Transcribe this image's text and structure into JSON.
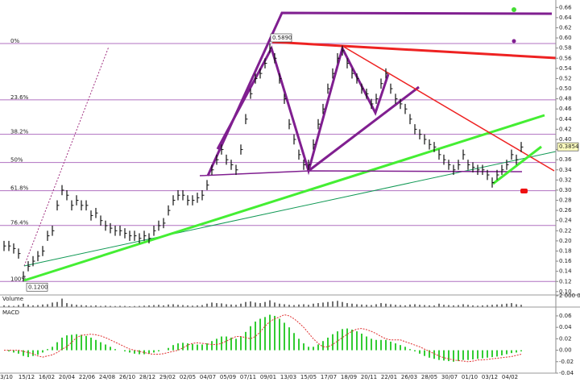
{
  "chart_data": [
    {
      "type": "hlc",
      "high": [
        0.2,
        0.2,
        0.195,
        0.185,
        0.14,
        0.16,
        0.17,
        0.18,
        0.19,
        0.22,
        0.23,
        0.28,
        0.31,
        0.3,
        0.28,
        0.29,
        0.28,
        0.28,
        0.26,
        0.265,
        0.25,
        0.24,
        0.235,
        0.23,
        0.23,
        0.225,
        0.22,
        0.22,
        0.215,
        0.22,
        0.215,
        0.23,
        0.24,
        0.245,
        0.27,
        0.29,
        0.3,
        0.3,
        0.29,
        0.29,
        0.295,
        0.3,
        0.32,
        0.35,
        0.37,
        0.39,
        0.37,
        0.36,
        0.35,
        0.39,
        0.45,
        0.5,
        0.53,
        0.54,
        0.56,
        0.589,
        0.57,
        0.53,
        0.49,
        0.44,
        0.41,
        0.38,
        0.36,
        0.36,
        0.4,
        0.44,
        0.47,
        0.51,
        0.54,
        0.57,
        0.585,
        0.56,
        0.54,
        0.53,
        0.51,
        0.5,
        0.48,
        0.49,
        0.52,
        0.54,
        0.51,
        0.49,
        0.48,
        0.47,
        0.45,
        0.43,
        0.42,
        0.41,
        0.4,
        0.395,
        0.38,
        0.37,
        0.36,
        0.35,
        0.36,
        0.38,
        0.36,
        0.355,
        0.35,
        0.35,
        0.34,
        0.325,
        0.34,
        0.35,
        0.36,
        0.38,
        0.37,
        0.395
      ],
      "low": [
        0.18,
        0.18,
        0.175,
        0.165,
        0.12,
        0.14,
        0.15,
        0.16,
        0.17,
        0.2,
        0.21,
        0.26,
        0.29,
        0.28,
        0.26,
        0.27,
        0.26,
        0.26,
        0.24,
        0.245,
        0.23,
        0.22,
        0.215,
        0.21,
        0.21,
        0.205,
        0.2,
        0.2,
        0.195,
        0.2,
        0.195,
        0.21,
        0.22,
        0.225,
        0.25,
        0.27,
        0.28,
        0.28,
        0.27,
        0.27,
        0.275,
        0.28,
        0.3,
        0.33,
        0.35,
        0.37,
        0.35,
        0.34,
        0.33,
        0.37,
        0.43,
        0.48,
        0.51,
        0.52,
        0.54,
        0.57,
        0.55,
        0.51,
        0.47,
        0.42,
        0.39,
        0.36,
        0.34,
        0.34,
        0.38,
        0.42,
        0.45,
        0.49,
        0.52,
        0.55,
        0.565,
        0.54,
        0.52,
        0.51,
        0.49,
        0.48,
        0.46,
        0.47,
        0.5,
        0.52,
        0.49,
        0.47,
        0.46,
        0.45,
        0.43,
        0.41,
        0.4,
        0.39,
        0.38,
        0.375,
        0.36,
        0.35,
        0.34,
        0.33,
        0.34,
        0.36,
        0.34,
        0.335,
        0.33,
        0.33,
        0.32,
        0.305,
        0.32,
        0.33,
        0.34,
        0.36,
        0.35,
        0.375
      ],
      "close": [
        0.19,
        0.19,
        0.185,
        0.175,
        0.13,
        0.15,
        0.16,
        0.17,
        0.18,
        0.21,
        0.22,
        0.27,
        0.3,
        0.29,
        0.27,
        0.28,
        0.27,
        0.27,
        0.25,
        0.255,
        0.24,
        0.23,
        0.225,
        0.22,
        0.22,
        0.215,
        0.21,
        0.21,
        0.205,
        0.21,
        0.205,
        0.22,
        0.23,
        0.235,
        0.26,
        0.28,
        0.29,
        0.29,
        0.28,
        0.28,
        0.285,
        0.29,
        0.31,
        0.34,
        0.36,
        0.38,
        0.36,
        0.35,
        0.34,
        0.38,
        0.44,
        0.49,
        0.52,
        0.53,
        0.55,
        0.58,
        0.56,
        0.52,
        0.48,
        0.43,
        0.4,
        0.37,
        0.35,
        0.35,
        0.39,
        0.43,
        0.46,
        0.5,
        0.53,
        0.56,
        0.575,
        0.55,
        0.53,
        0.52,
        0.5,
        0.49,
        0.47,
        0.48,
        0.51,
        0.53,
        0.5,
        0.48,
        0.47,
        0.46,
        0.44,
        0.42,
        0.41,
        0.4,
        0.39,
        0.385,
        0.37,
        0.36,
        0.35,
        0.34,
        0.35,
        0.37,
        0.35,
        0.345,
        0.34,
        0.34,
        0.33,
        0.315,
        0.33,
        0.34,
        0.35,
        0.37,
        0.36,
        0.385
      ],
      "color": "#111111",
      "ylim": [
        0.095,
        0.67
      ],
      "yticks": [
        {
          "value": 0.1,
          "label": "0.10"
        },
        {
          "value": 0.12,
          "label": "0.12"
        },
        {
          "value": 0.14,
          "label": "0.14"
        },
        {
          "value": 0.16,
          "label": "0.16"
        },
        {
          "value": 0.18,
          "label": "0.18"
        },
        {
          "value": 0.2,
          "label": "0.20"
        },
        {
          "value": 0.22,
          "label": "0.22"
        },
        {
          "value": 0.24,
          "label": "0.24"
        },
        {
          "value": 0.26,
          "label": "0.26"
        },
        {
          "value": 0.28,
          "label": "0.28"
        },
        {
          "value": 0.3,
          "label": "0.30"
        },
        {
          "value": 0.32,
          "label": "0.32"
        },
        {
          "value": 0.34,
          "label": "0.34"
        },
        {
          "value": 0.36,
          "label": "0.36"
        },
        {
          "value": 0.38,
          "label": "0.38"
        },
        {
          "value": 0.4,
          "label": "0.40"
        },
        {
          "value": 0.42,
          "label": "0.42"
        },
        {
          "value": 0.44,
          "label": "0.44"
        },
        {
          "value": 0.46,
          "label": "0.46"
        },
        {
          "value": 0.48,
          "label": "0.48"
        },
        {
          "value": 0.5,
          "label": "0.50"
        },
        {
          "value": 0.52,
          "label": "0.52"
        },
        {
          "value": 0.54,
          "label": "0.54"
        },
        {
          "value": 0.56,
          "label": "0.56"
        },
        {
          "value": 0.58,
          "label": "0.58"
        },
        {
          "value": 0.6,
          "label": "0.60"
        },
        {
          "value": 0.62,
          "label": "0.62"
        },
        {
          "value": 0.64,
          "label": "0.64"
        },
        {
          "value": 0.66,
          "label": "0.66"
        }
      ],
      "fib_levels": [
        {
          "value": 0.589,
          "label": "0%"
        },
        {
          "value": 0.478,
          "label": "23.6%"
        },
        {
          "value": 0.41,
          "label": "38.2%"
        },
        {
          "value": 0.3545,
          "label": "50%"
        },
        {
          "value": 0.299,
          "label": "61.8%"
        },
        {
          "value": 0.2305,
          "label": "76.4%"
        },
        {
          "value": 0.12,
          "label": "100%"
        }
      ],
      "fib_color": "#b070c0",
      "price_labels": [
        {
          "value": 0.589,
          "label": "0.5890"
        },
        {
          "value": 0.12,
          "label": "0.1200"
        },
        {
          "value": 0.3854,
          "label": "0.3854"
        }
      ]
    },
    {
      "type": "bar",
      "title": "Volume",
      "values": [
        300000,
        250000,
        200000,
        350000,
        600000,
        400000,
        300000,
        350000,
        450000,
        500000,
        800000,
        900000,
        1500000,
        700000,
        500000,
        400000,
        350000,
        300000,
        250000,
        300000,
        200000,
        250000,
        200000,
        180000,
        220000,
        200000,
        150000,
        180000,
        200000,
        250000,
        300000,
        350000,
        400000,
        300000,
        450000,
        500000,
        400000,
        350000,
        300000,
        250000,
        300000,
        350000,
        600000,
        800000,
        700000,
        650000,
        500000,
        450000,
        400000,
        600000,
        900000,
        1000000,
        800000,
        700000,
        900000,
        1200000,
        800000,
        600000,
        500000,
        400000,
        350000,
        450000,
        500000,
        400000,
        600000,
        700000,
        800000,
        900000,
        1000000,
        1100000,
        900000,
        700000,
        600000,
        500000,
        450000,
        400000,
        350000,
        500000,
        700000,
        600000,
        500000,
        400000,
        350000,
        300000,
        450000,
        500000,
        400000,
        350000,
        300000,
        280000,
        600000,
        400000,
        350000,
        300000,
        350000,
        500000,
        400000,
        300000,
        250000,
        300000,
        350000,
        400000,
        450000,
        500000,
        600000,
        700000,
        500000,
        400000
      ],
      "color": "#111111",
      "ylim": [
        0,
        2000000
      ],
      "yticks": [
        {
          "value": 2000000,
          "label": "2 000 000"
        }
      ]
    },
    {
      "type": "macd",
      "title": "MACD",
      "values": [
        0,
        -0.002,
        -0.004,
        -0.006,
        -0.01,
        -0.012,
        -0.01,
        -0.008,
        -0.004,
        0.002,
        0.006,
        0.014,
        0.022,
        0.026,
        0.027,
        0.028,
        0.027,
        0.025,
        0.022,
        0.018,
        0.014,
        0.01,
        0.006,
        0.002,
        0,
        -0.002,
        -0.004,
        -0.006,
        -0.007,
        -0.007,
        -0.006,
        -0.004,
        -0.002,
        0,
        0.004,
        0.009,
        0.012,
        0.013,
        0.012,
        0.011,
        0.01,
        0.01,
        0.012,
        0.016,
        0.02,
        0.024,
        0.024,
        0.022,
        0.02,
        0.024,
        0.032,
        0.042,
        0.05,
        0.055,
        0.058,
        0.062,
        0.06,
        0.055,
        0.048,
        0.04,
        0.03,
        0.02,
        0.012,
        0.006,
        0.006,
        0.01,
        0.016,
        0.022,
        0.028,
        0.033,
        0.037,
        0.038,
        0.036,
        0.033,
        0.029,
        0.024,
        0.02,
        0.018,
        0.018,
        0.018,
        0.015,
        0.012,
        0.009,
        0.006,
        0.002,
        -0.002,
        -0.006,
        -0.01,
        -0.013,
        -0.015,
        -0.017,
        -0.018,
        -0.019,
        -0.02,
        -0.019,
        -0.017,
        -0.017,
        -0.016,
        -0.015,
        -0.014,
        -0.013,
        -0.012,
        -0.011,
        -0.009,
        -0.007,
        -0.005,
        -0.004,
        -0.002
      ],
      "signal": [
        0,
        0,
        0,
        0,
        -0.002,
        -0.004,
        -0.006,
        -0.01,
        -0.012,
        -0.01,
        -0.008,
        -0.004,
        0.002,
        0.006,
        0.014,
        0.022,
        0.026,
        0.027,
        0.028,
        0.027,
        0.025,
        0.022,
        0.018,
        0.014,
        0.01,
        0.006,
        0.002,
        0,
        -0.002,
        -0.004,
        -0.006,
        -0.007,
        -0.007,
        -0.006,
        -0.004,
        -0.002,
        0,
        0.004,
        0.009,
        0.012,
        0.013,
        0.012,
        0.011,
        0.01,
        0.01,
        0.012,
        0.016,
        0.02,
        0.024,
        0.024,
        0.022,
        0.02,
        0.024,
        0.032,
        0.042,
        0.05,
        0.055,
        0.058,
        0.062,
        0.06,
        0.055,
        0.048,
        0.04,
        0.03,
        0.02,
        0.012,
        0.006,
        0.006,
        0.01,
        0.016,
        0.022,
        0.028,
        0.033,
        0.037,
        0.038,
        0.036,
        0.033,
        0.029,
        0.024,
        0.02,
        0.018,
        0.018,
        0.018,
        0.015,
        0.012,
        0.009,
        0.006,
        0.002,
        -0.002,
        -0.006,
        -0.01,
        -0.013,
        -0.015,
        -0.017,
        -0.018,
        -0.019,
        -0.02,
        -0.019,
        -0.017,
        -0.017,
        -0.016,
        -0.015,
        -0.014,
        -0.013,
        -0.012,
        -0.011,
        -0.009,
        -0.007
      ],
      "color": "#33cc33",
      "signal_color": "#e03030",
      "ylim": [
        -0.04,
        0.074
      ],
      "yticks": [
        {
          "value": 0.06,
          "label": "0.06"
        },
        {
          "value": 0.04,
          "label": "0.04"
        },
        {
          "value": 0.02,
          "label": "0.02"
        },
        {
          "value": 0,
          "label": "0.00"
        },
        {
          "value": -0.02,
          "label": "-0.02"
        },
        {
          "value": -0.04,
          "label": "-0.04"
        }
      ],
      "xtick_labels": [
        "3/10",
        "15/12",
        "16/02",
        "20/04",
        "22/06",
        "24/08",
        "26/10",
        "28/12",
        "29/02",
        "02/05",
        "04/07",
        "05/09",
        "07/11",
        "09/01",
        "13/03",
        "15/05",
        "17/07",
        "18/09",
        "20/11",
        "22/01",
        "26/03",
        "28/05",
        "30/07",
        "01/10",
        "03/12",
        "04/02"
      ]
    }
  ]
}
